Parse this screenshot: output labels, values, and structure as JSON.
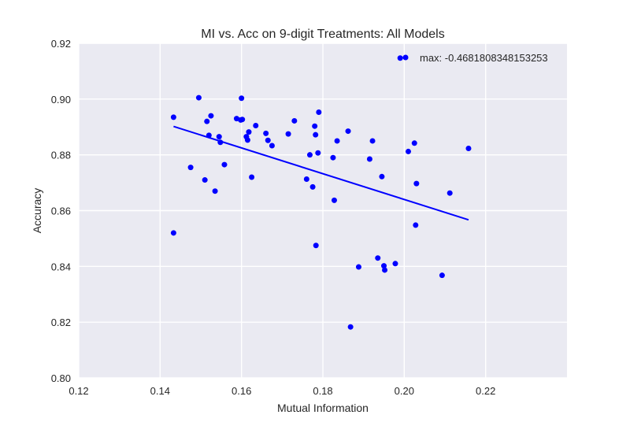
{
  "chart_data": {
    "type": "scatter",
    "title": "MI vs. Acc on 9-digit Treatments: All Models",
    "xlabel": "Mutual Information",
    "ylabel": "Accuracy",
    "xlim": [
      0.12,
      0.24
    ],
    "ylim": [
      0.8,
      0.92
    ],
    "x_ticks": [
      "0.12",
      "0.14",
      "0.16",
      "0.18",
      "0.20",
      "0.22"
    ],
    "y_ticks": [
      "0.80",
      "0.82",
      "0.84",
      "0.86",
      "0.88",
      "0.90",
      "0.92"
    ],
    "grid": true,
    "background_color": "#eaeaf2",
    "point_color": "#0000ff",
    "line_color": "#0000ff",
    "legend": {
      "label": "max: -0.4681808348153253",
      "placement": "top-right"
    },
    "series": [
      {
        "type": "scatter",
        "points": [
          [
            0.1433,
            0.8935
          ],
          [
            0.1433,
            0.852
          ],
          [
            0.1475,
            0.8755
          ],
          [
            0.1495,
            0.9005
          ],
          [
            0.151,
            0.871
          ],
          [
            0.1515,
            0.892
          ],
          [
            0.152,
            0.887
          ],
          [
            0.1525,
            0.894
          ],
          [
            0.1535,
            0.867
          ],
          [
            0.1545,
            0.8865
          ],
          [
            0.1548,
            0.8845
          ],
          [
            0.1558,
            0.8765
          ],
          [
            0.1588,
            0.893
          ],
          [
            0.1598,
            0.8925
          ],
          [
            0.16,
            0.9003
          ],
          [
            0.1602,
            0.8927
          ],
          [
            0.1612,
            0.8865
          ],
          [
            0.1615,
            0.8853
          ],
          [
            0.1618,
            0.8882
          ],
          [
            0.1625,
            0.872
          ],
          [
            0.1635,
            0.8905
          ],
          [
            0.166,
            0.8877
          ],
          [
            0.1665,
            0.8852
          ],
          [
            0.1675,
            0.8833
          ],
          [
            0.1715,
            0.8875
          ],
          [
            0.173,
            0.8922
          ],
          [
            0.176,
            0.8713
          ],
          [
            0.1768,
            0.88
          ],
          [
            0.1775,
            0.8685
          ],
          [
            0.178,
            0.8903
          ],
          [
            0.1782,
            0.8872
          ],
          [
            0.1783,
            0.8475
          ],
          [
            0.1788,
            0.8807
          ],
          [
            0.179,
            0.8953
          ],
          [
            0.1825,
            0.879
          ],
          [
            0.1828,
            0.8637
          ],
          [
            0.1835,
            0.885
          ],
          [
            0.1862,
            0.8885
          ],
          [
            0.1868,
            0.8183
          ],
          [
            0.1888,
            0.8398
          ],
          [
            0.1915,
            0.8785
          ],
          [
            0.1922,
            0.885
          ],
          [
            0.1935,
            0.843
          ],
          [
            0.1945,
            0.8722
          ],
          [
            0.195,
            0.8402
          ],
          [
            0.1952,
            0.8387
          ],
          [
            0.1978,
            0.841
          ],
          [
            0.199,
            0.9147
          ],
          [
            0.201,
            0.8812
          ],
          [
            0.2025,
            0.8842
          ],
          [
            0.2028,
            0.8548
          ],
          [
            0.203,
            0.8697
          ],
          [
            0.2093,
            0.8368
          ],
          [
            0.2112,
            0.8663
          ],
          [
            0.2158,
            0.8823
          ]
        ]
      },
      {
        "type": "line",
        "name": "max: -0.4681808348153253",
        "points": [
          [
            0.1433,
            0.8902
          ],
          [
            0.2158,
            0.8567
          ]
        ]
      }
    ]
  }
}
